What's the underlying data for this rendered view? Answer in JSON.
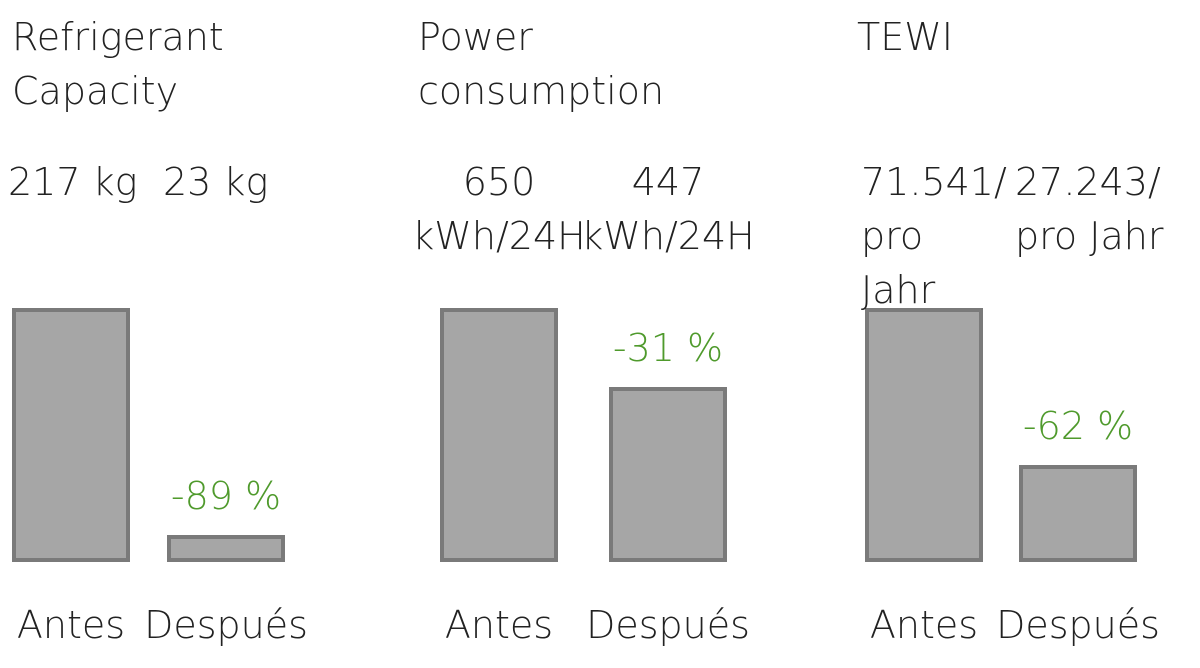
{
  "chart_data": [
    {
      "type": "bar",
      "title": "Refrigerant\nCapacity",
      "categories": [
        "Antes",
        "Después"
      ],
      "values": [
        217,
        23
      ],
      "value_labels": [
        "217 kg",
        "23 kg"
      ],
      "annotation": "-89 %",
      "color": "#a6a6a6",
      "edge_color": "#7a7a7a",
      "annotation_color": "#4f9a2c"
    },
    {
      "type": "bar",
      "title": "Power\nconsumption",
      "categories": [
        "Antes",
        "Después"
      ],
      "values": [
        650,
        447
      ],
      "value_labels": [
        "650\nkWh/24H",
        "447\nkWh/24H"
      ],
      "annotation": "-31 %",
      "color": "#a6a6a6",
      "edge_color": "#7a7a7a",
      "annotation_color": "#4f9a2c"
    },
    {
      "type": "bar",
      "title": "TEWI",
      "categories": [
        "Antes",
        "Después"
      ],
      "values": [
        71541,
        27243
      ],
      "value_labels": [
        "71.541/\npro\nJahr",
        "27.243/\npro Jahr"
      ],
      "annotation": "-62 %",
      "color": "#a6a6a6",
      "edge_color": "#7a7a7a",
      "annotation_color": "#4f9a2c"
    }
  ]
}
